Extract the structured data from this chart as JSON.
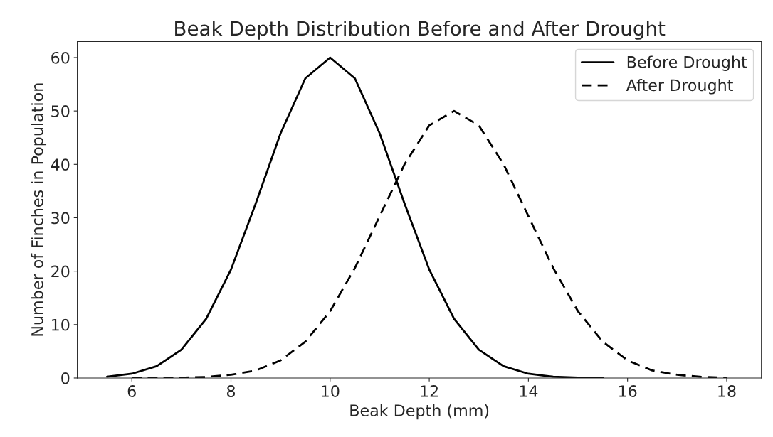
{
  "chart_data": {
    "type": "line",
    "title": "Beak Depth Distribution Before and After Drought",
    "xlabel": "Beak Depth (mm)",
    "ylabel": "Number of Finches in Population",
    "series": [
      {
        "name": "Before Drought",
        "color": "#000000",
        "line_style": "solid",
        "x": [
          5.5,
          6,
          6.5,
          7,
          7.5,
          8,
          8.5,
          9,
          9.5,
          10,
          10.5,
          11,
          11.5,
          12,
          12.5,
          13,
          13.5,
          14,
          14.5,
          15,
          15.5
        ],
        "values": [
          0.25,
          0.8,
          2.2,
          5.3,
          11.1,
          20.3,
          32.7,
          45.8,
          56.1,
          60,
          56.1,
          45.8,
          32.7,
          20.3,
          11.1,
          5.3,
          2.2,
          0.8,
          0.25,
          0.07,
          0
        ]
      },
      {
        "name": "After Drought",
        "color": "#000000",
        "line_style": "dashed",
        "x": [
          6,
          6.5,
          7,
          7.5,
          8,
          8.5,
          9,
          9.5,
          10,
          10.5,
          11,
          11.5,
          12,
          12.5,
          13,
          13.5,
          14,
          14.5,
          15,
          15.5,
          16,
          16.5,
          17,
          17.5,
          18
        ],
        "values": [
          0,
          0,
          0.06,
          0.2,
          0.6,
          1.4,
          3.3,
          6.8,
          12.5,
          20.6,
          30.3,
          40.0,
          47.3,
          50,
          47.3,
          40.0,
          30.3,
          20.6,
          12.5,
          6.8,
          3.3,
          1.4,
          0.6,
          0.2,
          0.06
        ]
      }
    ],
    "xlim": [
      4.9,
      18.7
    ],
    "ylim": [
      0,
      63
    ],
    "xticks": [
      6,
      8,
      10,
      12,
      14,
      16,
      18
    ],
    "yticks": [
      0,
      10,
      20,
      30,
      40,
      50,
      60
    ],
    "grid": false,
    "legend": "top right"
  }
}
